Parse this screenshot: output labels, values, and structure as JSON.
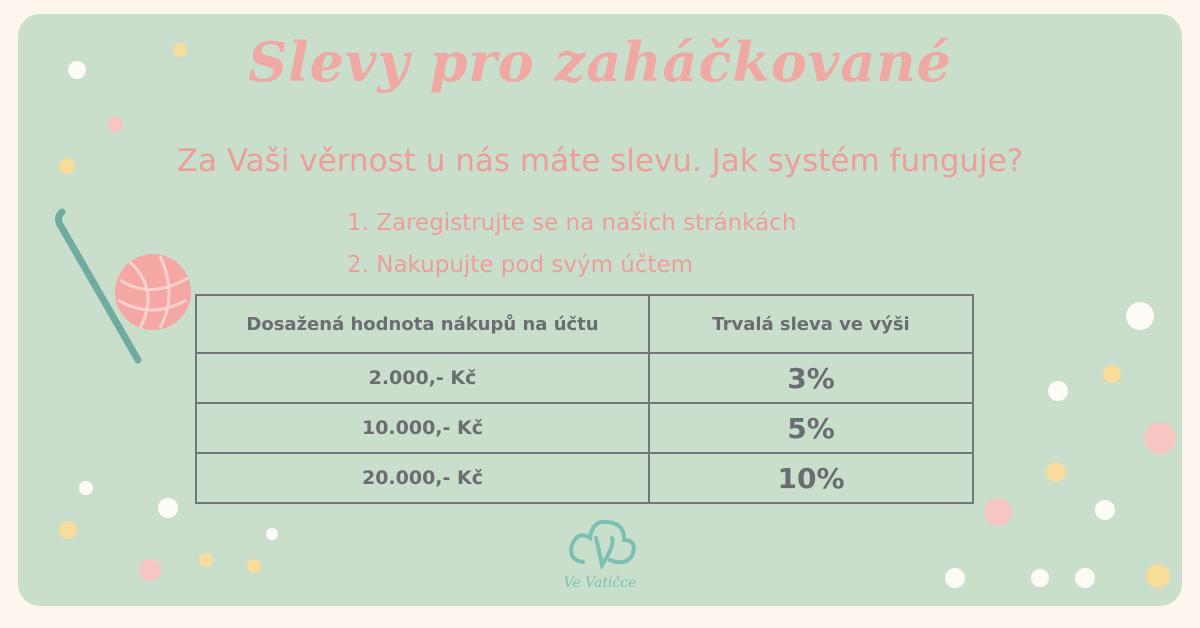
{
  "title": "Slevy pro zaháčkované",
  "subtitle": "Za Vaši věrnost u nás máte slevu. Jak systém funguje?",
  "steps": [
    "1. Zaregistrujte se na našich stránkách",
    "2. Nakupujte pod svým účtem"
  ],
  "table": {
    "headers": [
      "Dosažená hodnota nákupů na účtu",
      "Trvalá sleva ve výši"
    ],
    "rows": [
      {
        "amount": "2.000,- Kč",
        "discount": "3%"
      },
      {
        "amount": "10.000,- Kč",
        "discount": "5%"
      },
      {
        "amount": "20.000,- Kč",
        "discount": "10%"
      }
    ]
  },
  "logo": {
    "text": "Ve Vatičce",
    "icon": "cloud-v-icon"
  },
  "colors": {
    "background": "#c9dfcb",
    "accent": "#f0a8a2",
    "logo": "#7cc0b3",
    "table_text": "#6a6d71"
  }
}
